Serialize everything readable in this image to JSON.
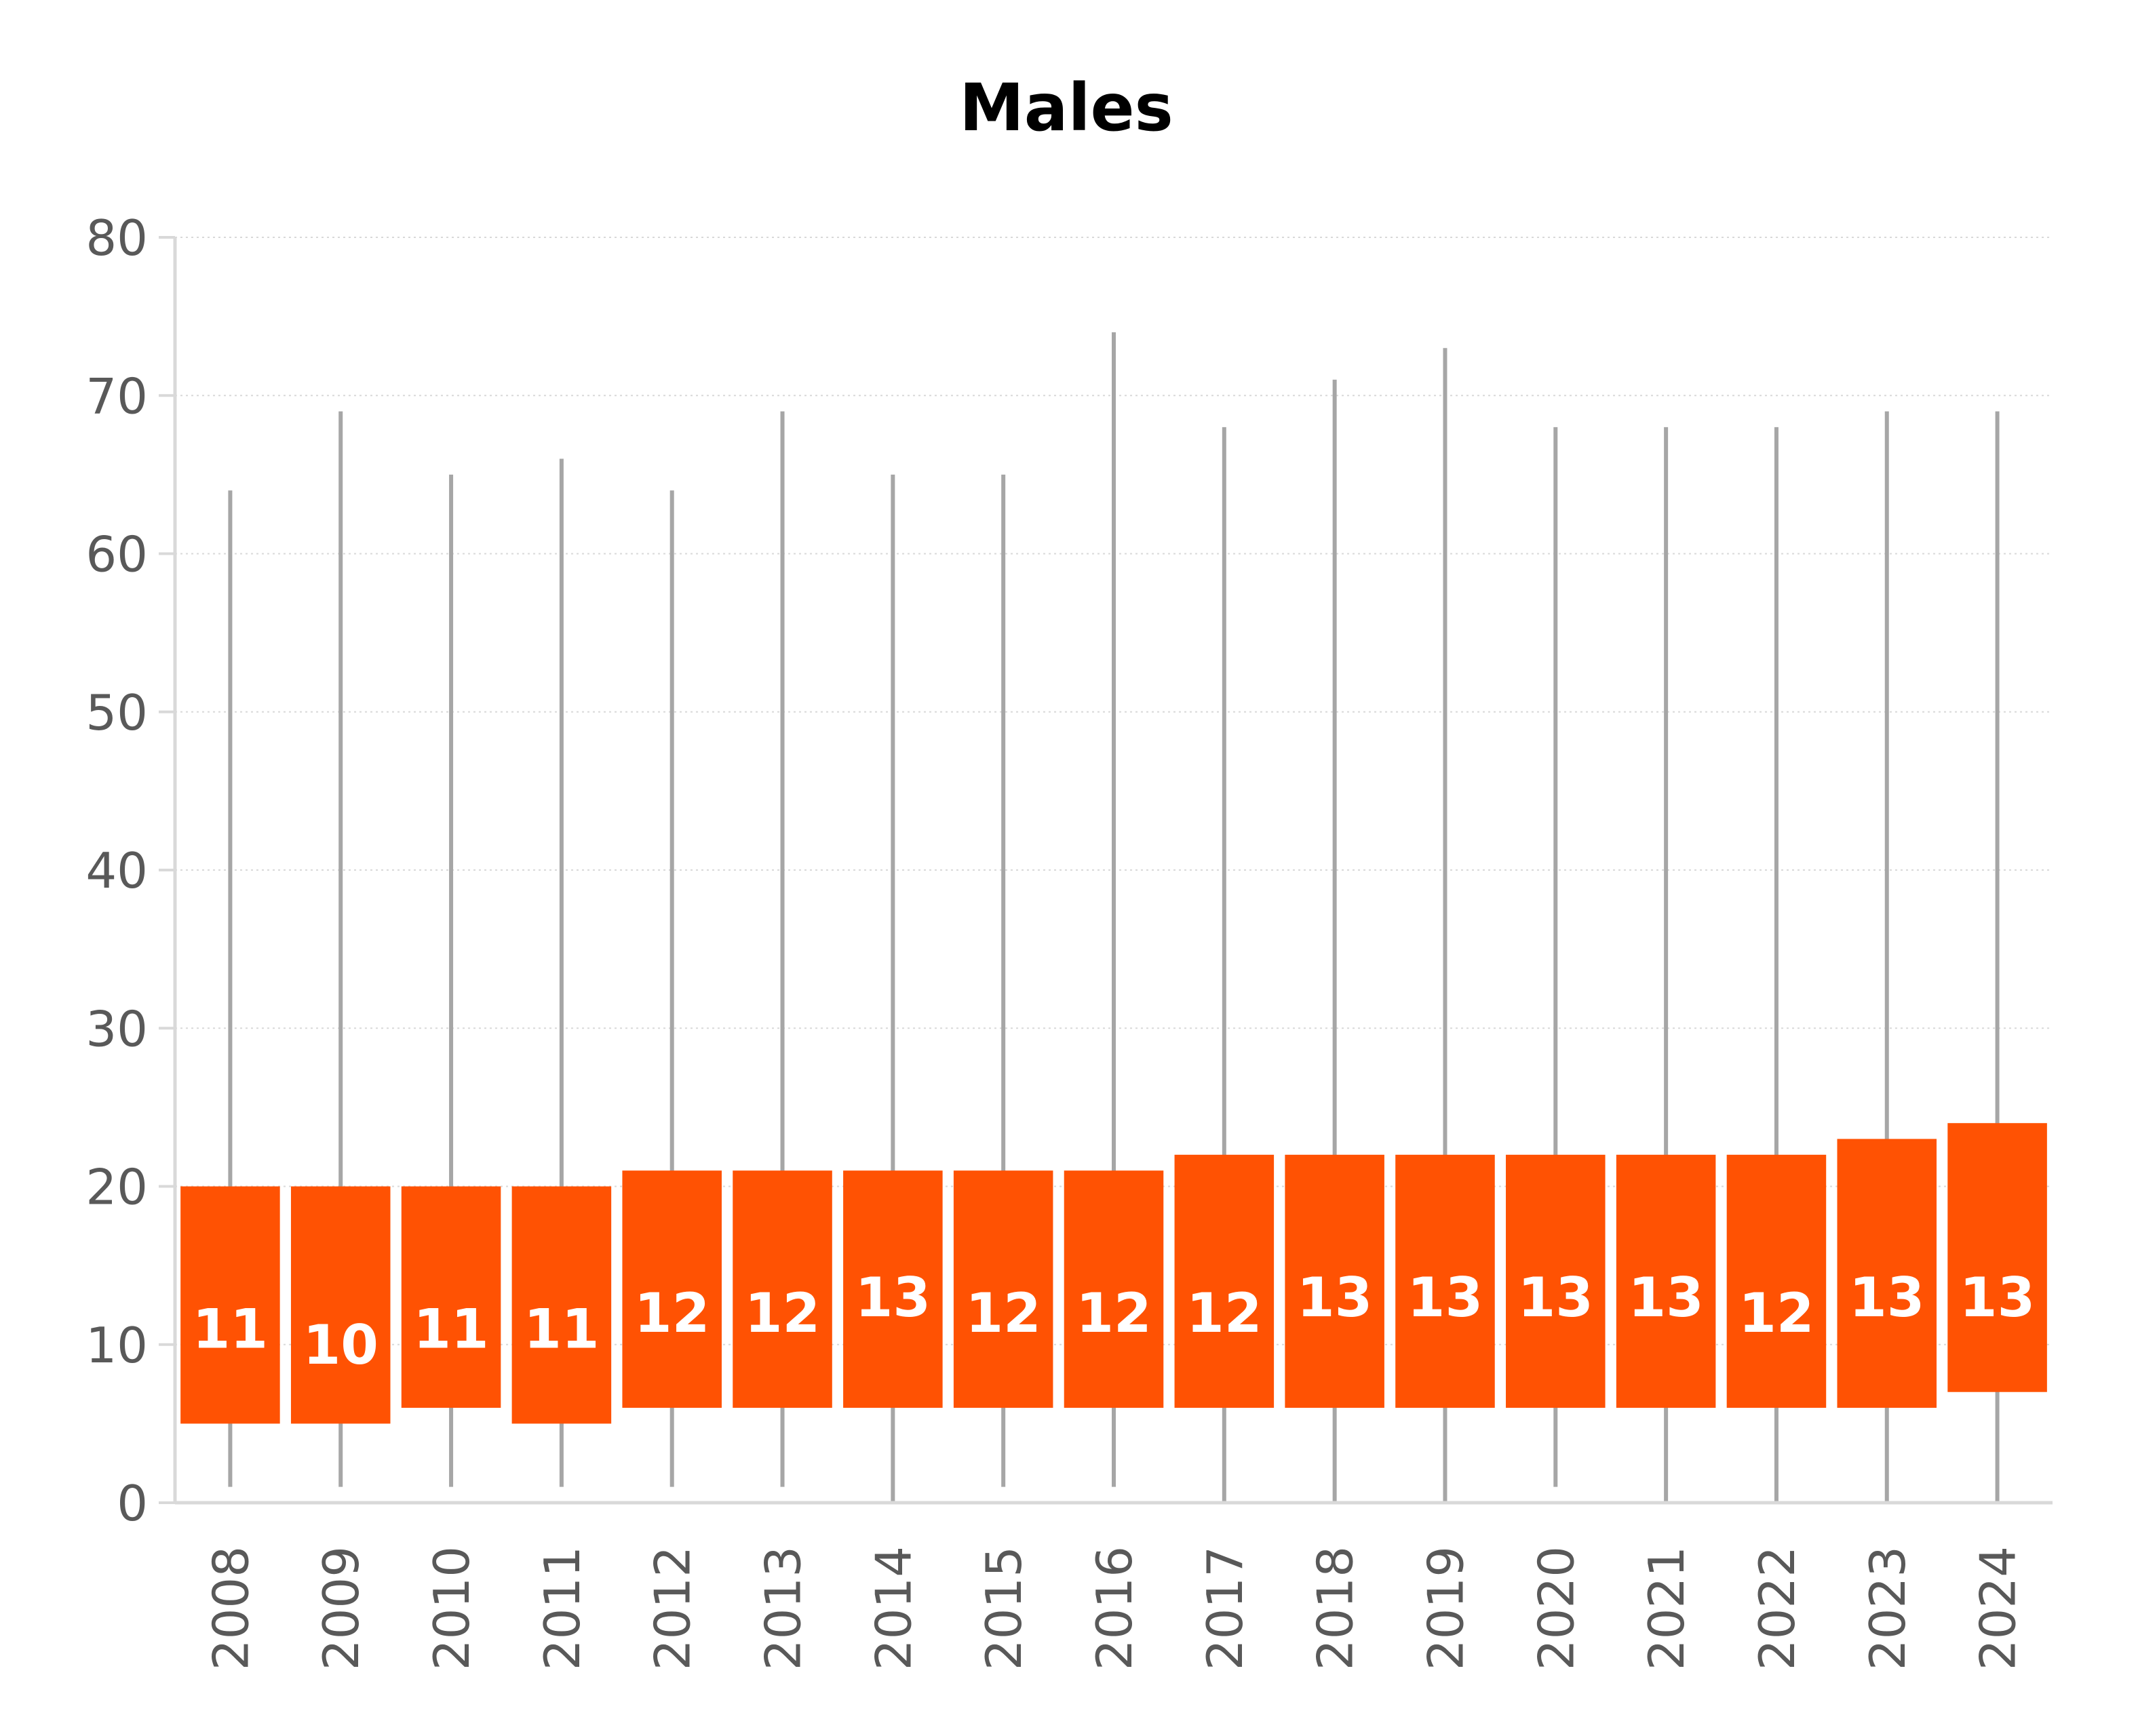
{
  "chart_data": {
    "type": "boxplot",
    "title": "Males",
    "xlabel": "",
    "ylabel": "",
    "ylim": [
      0,
      80
    ],
    "yticks": [
      0,
      10,
      20,
      30,
      40,
      50,
      60,
      70,
      80
    ],
    "grid": true,
    "categories": [
      "2008",
      "2009",
      "2010",
      "2011",
      "2012",
      "2013",
      "2014",
      "2015",
      "2016",
      "2017",
      "2018",
      "2019",
      "2020",
      "2021",
      "2022",
      "2023",
      "2024"
    ],
    "min": [
      1,
      1,
      1,
      1,
      1,
      1,
      0,
      1,
      1,
      0,
      0,
      0,
      1,
      0,
      0,
      0,
      0
    ],
    "q1": [
      5,
      5,
      6,
      5,
      6,
      6,
      6,
      6,
      6,
      6,
      6,
      6,
      6,
      6,
      6,
      6,
      7
    ],
    "median": [
      11,
      10,
      11,
      11,
      12,
      12,
      13,
      12,
      12,
      12,
      13,
      13,
      13,
      13,
      12,
      13,
      13
    ],
    "q3": [
      20,
      20,
      20,
      20,
      21,
      21,
      21,
      21,
      21,
      22,
      22,
      22,
      22,
      22,
      22,
      23,
      24
    ],
    "max": [
      64,
      69,
      65,
      66,
      64,
      69,
      65,
      65,
      74,
      68,
      71,
      73,
      68,
      68,
      68,
      69,
      69
    ],
    "colors": {
      "box": "#FF5203",
      "whisker": "#A6A6A6",
      "grid": "#D9D9D9",
      "axis": "#D9D9D9",
      "tick_text": "#595959",
      "label_text": "#FFFFFF"
    }
  }
}
